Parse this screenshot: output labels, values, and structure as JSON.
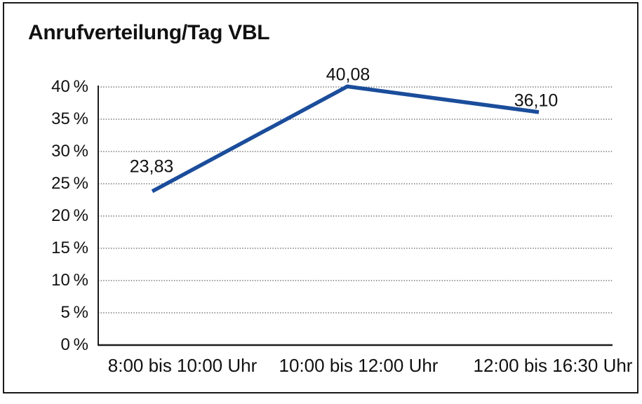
{
  "chart_data": {
    "type": "line",
    "title": "Anrufverteilung/Tag VBL",
    "categories": [
      "8:00 bis 10:00 Uhr",
      "10:00 bis 12:00 Uhr",
      "12:00 bis 16:30 Uhr"
    ],
    "series": [
      {
        "values": [
          23.83,
          40.08,
          36.1
        ],
        "value_labels": [
          "23,83",
          "40,08",
          "36,10"
        ],
        "color": "#1B4D9B"
      }
    ],
    "y_axis": {
      "min": 0,
      "max": 40,
      "step": 5,
      "unit": "%",
      "tick_labels": [
        "0 %",
        "5 %",
        "10 %",
        "15 %",
        "20 %",
        "25 %",
        "30 %",
        "35 %",
        "40 %"
      ]
    },
    "ylim": [
      0,
      40
    ],
    "grid": "horizontal-dotted",
    "legend": "none"
  },
  "colors": {
    "line": "#1B4D9B",
    "text": "#111111",
    "grid": "#4a4a4a",
    "axis": "#1c1c1c",
    "frame_border": "#1a1a1a",
    "background": "#ffffff"
  }
}
